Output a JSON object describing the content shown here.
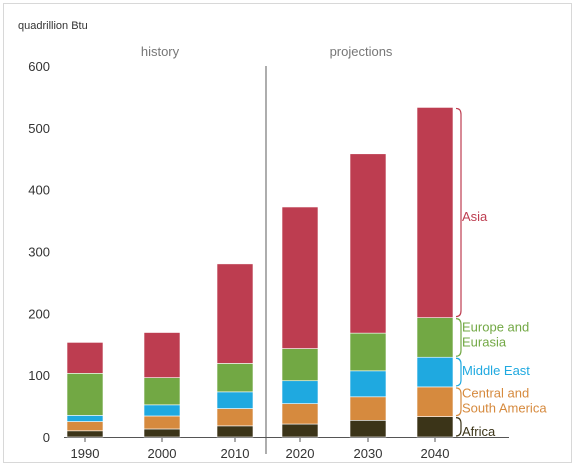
{
  "chart_data": {
    "type": "bar",
    "stacked": true,
    "unit_label": "quadrillion  Btu",
    "period_labels": [
      "history",
      "projections"
    ],
    "categories": [
      "1990",
      "2000",
      "2010",
      "2020",
      "2030",
      "2040"
    ],
    "history_count": 3,
    "ylim": [
      0,
      600
    ],
    "yticks": [
      0,
      100,
      200,
      300,
      400,
      500,
      600
    ],
    "grid": false,
    "legend": "right of bars, labels per segment",
    "series": [
      {
        "name": "Africa",
        "color": "#3b3418",
        "values": [
          10,
          13,
          18,
          21,
          27,
          33
        ]
      },
      {
        "name": "Central and South America",
        "color": "#d68a3e",
        "values": [
          15,
          21,
          28,
          33,
          38,
          48
        ]
      },
      {
        "name": "Middle East",
        "color": "#1fa9e0",
        "values": [
          10,
          18,
          27,
          37,
          42,
          48
        ]
      },
      {
        "name": "Europe and Eurasia",
        "color": "#72a844",
        "values": [
          68,
          44,
          46,
          52,
          61,
          64
        ]
      },
      {
        "name": "Asia",
        "color": "#bd3d50",
        "values": [
          50,
          73,
          161,
          229,
          290,
          340
        ]
      }
    ],
    "legend_labels": [
      {
        "lines": [
          "Asia"
        ],
        "color": "#bd3d50"
      },
      {
        "lines": [
          "Europe and",
          "Eurasia"
        ],
        "color": "#72a844"
      },
      {
        "lines": [
          "Middle East"
        ],
        "color": "#1fa9e0"
      },
      {
        "lines": [
          "Central and",
          "South America"
        ],
        "color": "#d68a3e"
      },
      {
        "lines": [
          "Africa"
        ],
        "color": "#3b3418"
      }
    ]
  }
}
